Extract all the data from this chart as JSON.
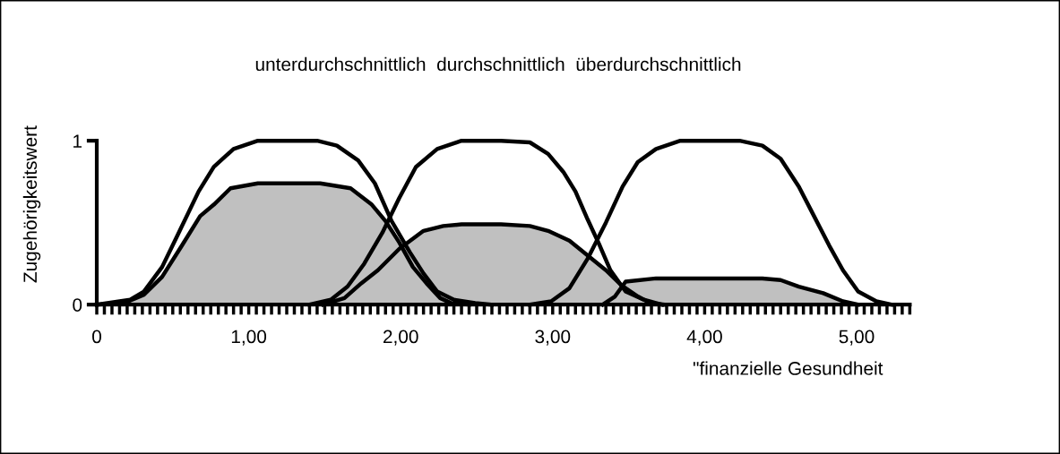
{
  "chart_data": {
    "type": "line",
    "title": "unterdurchschnittlich  durchschnittlich  überdurchschnittlich",
    "xlabel": "\"finanzielle Gesundheit",
    "ylabel": "Zugehörigkeitswert",
    "xlim": [
      0,
      5.35
    ],
    "xticks": [
      0,
      {
        "value": 1,
        "label": "1,00"
      },
      {
        "value": 2,
        "label": "2,00"
      },
      {
        "value": 3,
        "label": "3,00"
      },
      {
        "value": 4,
        "label": "4,00"
      },
      {
        "value": 5,
        "label": "5,00"
      }
    ],
    "ylim": [
      0,
      1
    ],
    "yticks": [
      0,
      1
    ],
    "grid": false,
    "legend": false,
    "marker": "none",
    "series": [
      {
        "type": "area",
        "color": "#c0c0c0",
        "x": [
          0,
          0.18,
          0.31,
          0.43,
          0.56,
          0.68,
          0.77,
          0.88,
          1.06,
          1.47,
          1.67,
          1.81,
          1.9,
          1.99,
          2.08,
          2.17,
          2.26,
          2.33,
          2.45
        ],
        "values": [
          0,
          0.01,
          0.06,
          0.17,
          0.36,
          0.54,
          0.61,
          0.71,
          0.74,
          0.74,
          0.71,
          0.61,
          0.51,
          0.38,
          0.23,
          0.13,
          0.04,
          0.01,
          0
        ]
      },
      {
        "type": "area",
        "color": "#c0c0c0",
        "x": [
          1.49,
          1.63,
          1.74,
          1.85,
          1.99,
          2.15,
          2.28,
          2.4,
          2.66,
          2.85,
          2.97,
          3.11,
          3.23,
          3.35,
          3.45,
          3.56,
          3.64,
          3.74
        ],
        "values": [
          0,
          0.04,
          0.13,
          0.21,
          0.34,
          0.45,
          0.48,
          0.49,
          0.49,
          0.48,
          0.45,
          0.39,
          0.3,
          0.21,
          0.12,
          0.05,
          0.01,
          0
        ]
      },
      {
        "type": "area",
        "color": "#c0c0c0",
        "x": [
          3.33,
          3.41,
          3.48,
          3.68,
          4.38,
          4.5,
          4.62,
          4.78,
          4.91,
          5.01
        ],
        "values": [
          0,
          0.05,
          0.14,
          0.16,
          0.16,
          0.15,
          0.11,
          0.07,
          0.02,
          0
        ]
      },
      {
        "color": "#000000",
        "x": [
          0,
          0.22,
          0.31,
          0.43,
          0.54,
          0.67,
          0.77,
          0.9,
          1.06,
          1.45,
          1.58,
          1.72,
          1.83,
          1.94,
          2.06,
          2.15,
          2.24,
          2.35,
          2.49,
          2.6
        ],
        "values": [
          0,
          0.03,
          0.08,
          0.23,
          0.44,
          0.69,
          0.84,
          0.95,
          1,
          1,
          0.97,
          0.88,
          0.74,
          0.51,
          0.32,
          0.19,
          0.08,
          0.03,
          0.01,
          0
        ]
      },
      {
        "color": "#000000",
        "x": [
          1.4,
          1.54,
          1.65,
          1.76,
          1.88,
          1.99,
          2.1,
          2.24,
          2.4,
          2.66,
          2.85,
          2.97,
          3.07,
          3.15,
          3.23,
          3.31,
          3.38,
          3.48,
          3.6,
          3.72
        ],
        "values": [
          0,
          0.03,
          0.11,
          0.25,
          0.44,
          0.65,
          0.84,
          0.95,
          1,
          1,
          0.99,
          0.92,
          0.81,
          0.69,
          0.52,
          0.36,
          0.21,
          0.08,
          0.03,
          0
        ]
      },
      {
        "color": "#000000",
        "x": [
          2.85,
          2.99,
          3.11,
          3.23,
          3.35,
          3.46,
          3.56,
          3.68,
          3.84,
          4.23,
          4.38,
          4.5,
          4.62,
          4.72,
          4.82,
          4.91,
          5.01,
          5.13,
          5.23
        ],
        "values": [
          0,
          0.02,
          0.1,
          0.28,
          0.5,
          0.72,
          0.87,
          0.95,
          1,
          1,
          0.97,
          0.89,
          0.72,
          0.54,
          0.36,
          0.21,
          0.08,
          0.02,
          0
        ]
      }
    ]
  }
}
